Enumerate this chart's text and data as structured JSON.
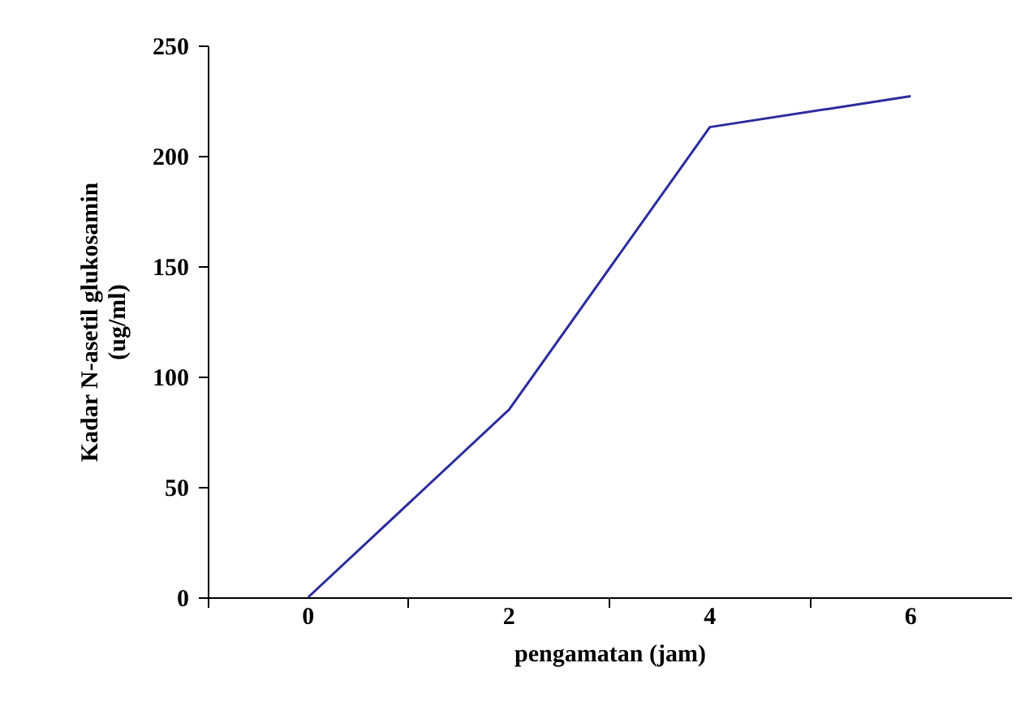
{
  "chart_data": {
    "type": "line",
    "xlabel": "pengamatan (jam)",
    "ylabel": "Kadar N-asetil glukosamin (ug/ml)",
    "categories": [
      "0",
      "2",
      "4",
      "6"
    ],
    "series": [
      {
        "color": "#2b2b9e",
        "values": [
          0,
          85,
          213,
          227
        ]
      }
    ],
    "ylim": [
      0,
      250
    ],
    "yticks": [
      0,
      50,
      100,
      150,
      200,
      250
    ],
    "grid": false,
    "marker": "none",
    "line_style": "solid"
  }
}
